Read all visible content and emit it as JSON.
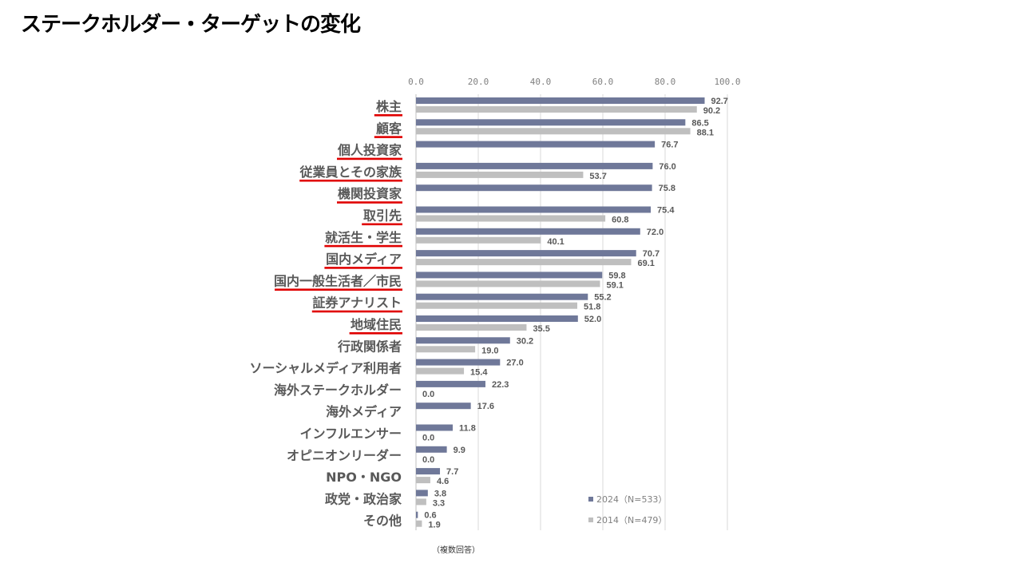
{
  "page": {
    "title": "ステークホルダー・ターゲットの変化",
    "note": "（複数回答）"
  },
  "chart_data": {
    "type": "bar",
    "orientation": "horizontal",
    "title": "ステークホルダー・ターゲットの変化",
    "xlim": [
      0,
      100
    ],
    "ticks": [
      "0.0",
      "20.0",
      "40.0",
      "60.0",
      "80.0",
      "100.0"
    ],
    "categories": [
      "株主",
      "顧客",
      "個人投資家",
      "従業員とその家族",
      "機関投資家",
      "取引先",
      "就活生・学生",
      "国内メディア",
      "国内一般生活者／市民",
      "証券アナリスト",
      "地域住民",
      "行政関係者",
      "ソーシャルメディア利用者",
      "海外ステークホルダー",
      "海外メディア",
      "インフルエンサー",
      "オピニオンリーダー",
      "NPO・NGO",
      "政党・政治家",
      "その他"
    ],
    "underlined": [
      "株主",
      "顧客",
      "個人投資家",
      "従業員とその家族",
      "機関投資家",
      "取引先",
      "就活生・学生",
      "国内メディア",
      "国内一般生活者／市民",
      "証券アナリスト",
      "地域住民"
    ],
    "series": [
      {
        "name": "2024（N=533）",
        "color": "#6f7899",
        "values": [
          92.7,
          86.5,
          76.7,
          76.0,
          75.8,
          75.4,
          72.0,
          70.7,
          59.8,
          55.2,
          52.0,
          30.2,
          27.0,
          22.3,
          17.6,
          11.8,
          9.9,
          7.7,
          3.8,
          0.6
        ],
        "labels": [
          "92.7",
          "86.5",
          "76.7",
          "76.0",
          "75.8",
          "75.4",
          "72.0",
          "70.7",
          "59.8",
          "55.2",
          "52.0",
          "30.2",
          "27.0",
          "22.3",
          "17.6",
          "11.8",
          "9.9",
          "7.7",
          "3.8",
          "0.6"
        ]
      },
      {
        "name": "2014（N=479）",
        "color": "#bfbfbf",
        "values": [
          90.2,
          88.1,
          null,
          53.7,
          null,
          60.8,
          40.1,
          69.1,
          59.1,
          51.8,
          35.5,
          19.0,
          15.4,
          0.0,
          null,
          0.0,
          0.0,
          4.6,
          3.3,
          1.9
        ],
        "labels": [
          "90.2",
          "88.1",
          null,
          "53.7",
          null,
          "60.8",
          "40.1",
          "69.1",
          "59.1",
          "51.8",
          "35.5",
          "19.0",
          "15.4",
          "0.0",
          null,
          "0.0",
          "0.0",
          "4.6",
          "3.3",
          "1.9"
        ]
      }
    ],
    "legend_position": "bottom-right",
    "accent_color": "#e00000"
  }
}
